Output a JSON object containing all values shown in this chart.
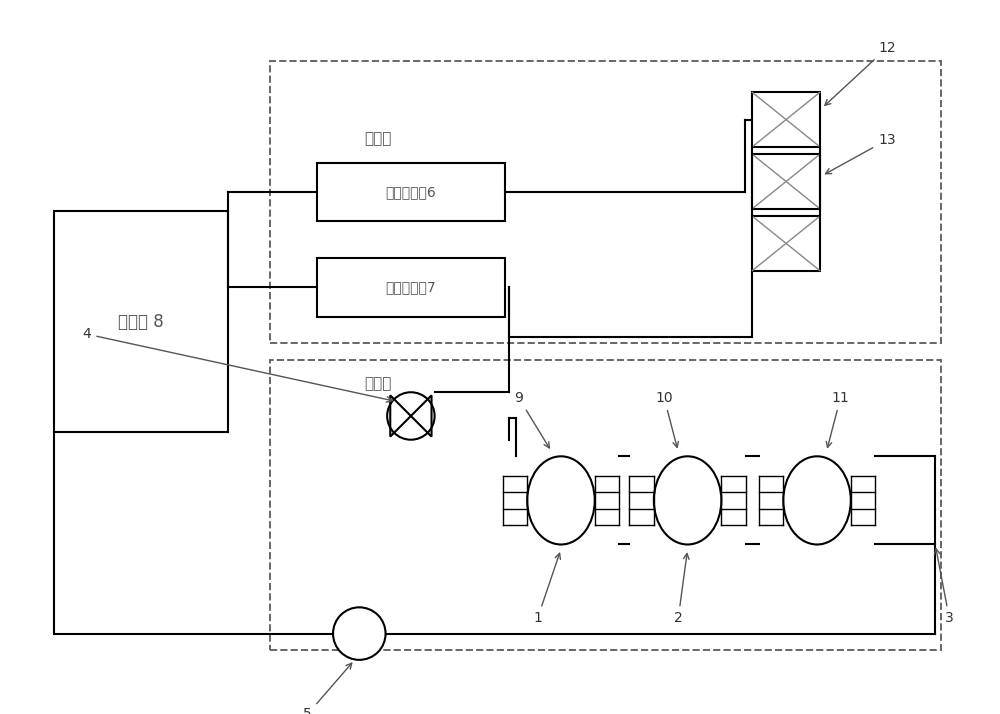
{
  "bg_color": "#ffffff",
  "line_color": "#000000",
  "dashed_color": "#666666",
  "gray_line": "#888888",
  "text_color": "#555555",
  "shuiLengji_label": "水冷机 8",
  "gauge1_label": "第一压力表6",
  "gauge2_label": "第二压力表7",
  "inner_label": "内光路",
  "outer_label": "外光路",
  "numbers": {
    "n1": "1",
    "n2": "2",
    "n3": "3",
    "n4": "4",
    "n5": "5",
    "n9": "9",
    "n10": "10",
    "n11": "11",
    "n12": "12",
    "n13": "13"
  }
}
